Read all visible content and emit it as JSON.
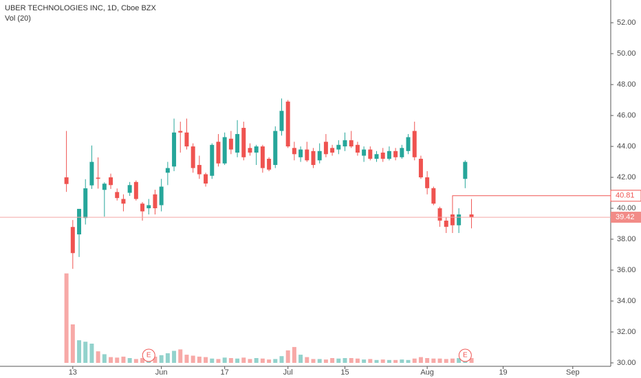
{
  "chart_data": {
    "type": "candlestick",
    "title": "UBER TECHNOLOGIES INC, 1D, Cboe BZX",
    "subtitle": "Vol (20)",
    "up_color": "#26a69a",
    "down_color": "#ef5350",
    "xlim": [
      -10.5,
      86
    ],
    "xticks": [
      {
        "value": 1,
        "label": "13"
      },
      {
        "value": 15,
        "label": "Jun"
      },
      {
        "value": 25,
        "label": "17"
      },
      {
        "value": 35,
        "label": "Jul"
      },
      {
        "value": 44,
        "label": "15"
      },
      {
        "value": 57,
        "label": "Aug"
      },
      {
        "value": 69,
        "label": "19"
      },
      {
        "value": 80,
        "label": "Sep"
      }
    ],
    "ylim": [
      30,
      53.47
    ],
    "yticks": [
      {
        "value": 30,
        "label": "30.00"
      },
      {
        "value": 32,
        "label": "32.00"
      },
      {
        "value": 34,
        "label": "34.00"
      },
      {
        "value": 36,
        "label": "36.00"
      },
      {
        "value": 38,
        "label": "38.00"
      },
      {
        "value": 40,
        "label": "40.00"
      },
      {
        "value": 42,
        "label": "42.00"
      },
      {
        "value": 44,
        "label": "44.00"
      },
      {
        "value": 46,
        "label": "46.00"
      },
      {
        "value": 48,
        "label": "48.00"
      },
      {
        "value": 50,
        "label": "50.00"
      },
      {
        "value": 52,
        "label": "52.00"
      }
    ],
    "open": [
      42.0,
      38.79,
      38.31,
      39.37,
      41.48,
      41.98,
      41.19,
      42.0,
      41.05,
      40.6,
      41.0,
      41.7,
      40.3,
      40.0,
      40.9,
      40.2,
      42.3,
      42.7,
      45.0,
      44.9,
      44.0,
      42.8,
      42.2,
      42.1,
      44.3,
      42.9,
      44.5,
      43.6,
      45.2,
      43.9,
      43.6,
      44.0,
      43.2,
      42.8,
      45.0,
      46.9,
      43.9,
      43.3,
      43.8,
      43.7,
      43.1,
      44.3,
      43.9,
      43.8,
      44.0,
      44.4,
      44.1,
      43.4,
      43.8,
      43.2,
      43.6,
      43.2,
      43.7,
      43.3,
      43.7,
      45.0,
      43.2,
      42.0,
      41.3,
      40.0,
      39.2,
      39.6,
      38.9,
      41.9,
      39.6
    ],
    "high": [
      45.0,
      39.24,
      39.96,
      41.88,
      44.06,
      43.29,
      41.68,
      42.24,
      41.28,
      40.9,
      41.7,
      41.8,
      40.4,
      40.6,
      41.2,
      41.9,
      43.0,
      45.8,
      45.6,
      45.8,
      44.2,
      43.4,
      42.3,
      44.2,
      44.8,
      44.9,
      45.0,
      45.7,
      45.6,
      44.2,
      44.1,
      44.1,
      43.3,
      45.3,
      47.1,
      47.0,
      44.3,
      44.0,
      44.3,
      43.9,
      44.2,
      44.8,
      44.1,
      44.4,
      44.9,
      45.0,
      44.3,
      44.0,
      44.0,
      43.7,
      43.9,
      44.0,
      43.9,
      44.1,
      44.8,
      45.6,
      43.4,
      42.4,
      41.4,
      40.1,
      39.4,
      39.7,
      40.0,
      43.1,
      40.6
    ],
    "low": [
      41.06,
      36.08,
      36.85,
      38.95,
      41.25,
      41.27,
      39.46,
      41.25,
      40.5,
      39.8,
      40.8,
      40.5,
      39.2,
      39.6,
      39.6,
      39.8,
      41.5,
      42.4,
      43.6,
      43.8,
      42.3,
      41.9,
      41.4,
      41.9,
      42.7,
      42.8,
      43.5,
      43.3,
      43.1,
      43.4,
      42.8,
      42.3,
      42.4,
      42.6,
      44.7,
      43.9,
      43.1,
      43.0,
      43.0,
      42.6,
      42.9,
      43.3,
      43.4,
      43.5,
      43.7,
      43.9,
      43.4,
      43.0,
      43.1,
      43.0,
      43.0,
      43.1,
      43.1,
      43.2,
      43.5,
      43.1,
      41.9,
      40.9,
      40.2,
      38.8,
      38.4,
      38.4,
      38.4,
      41.3,
      38.7
    ],
    "close": [
      41.57,
      37.1,
      39.96,
      41.29,
      43.0,
      41.91,
      41.59,
      41.5,
      40.66,
      40.3,
      41.5,
      40.6,
      39.8,
      40.2,
      40.0,
      41.4,
      42.6,
      44.9,
      44.9,
      44.0,
      42.6,
      42.2,
      41.6,
      44.1,
      42.9,
      44.6,
      43.8,
      44.8,
      43.3,
      43.6,
      44.0,
      42.6,
      42.5,
      45.0,
      46.3,
      44.0,
      43.5,
      43.8,
      43.1,
      42.8,
      43.7,
      43.5,
      43.6,
      44.1,
      44.4,
      44.0,
      43.6,
      43.8,
      43.2,
      43.5,
      43.2,
      43.7,
      43.3,
      43.9,
      44.6,
      43.3,
      42.0,
      41.3,
      40.3,
      39.2,
      38.8,
      38.9,
      39.6,
      43.0,
      39.42
    ],
    "volume": [
      186,
      80,
      47,
      44,
      40,
      24,
      18,
      12,
      11,
      13,
      10,
      8,
      10,
      11,
      13,
      16,
      20,
      25,
      28,
      17,
      15,
      13,
      12,
      9,
      8,
      11,
      10,
      9,
      11,
      8,
      10,
      9,
      7,
      8,
      14,
      26,
      33,
      17,
      12,
      8,
      8,
      7,
      10,
      9,
      10,
      10,
      9,
      7,
      8,
      6,
      7,
      6,
      6,
      7,
      6,
      9,
      12,
      10,
      9,
      9,
      8,
      9,
      10,
      12,
      10
    ],
    "vlim": [
      0,
      250
    ],
    "marker_price": {
      "value": 40.81,
      "label": "40.81"
    },
    "last_price": {
      "value": 39.42,
      "label": "39.42"
    },
    "events": [
      {
        "label": "E",
        "index": 13
      },
      {
        "label": "E",
        "index": 63
      }
    ]
  }
}
